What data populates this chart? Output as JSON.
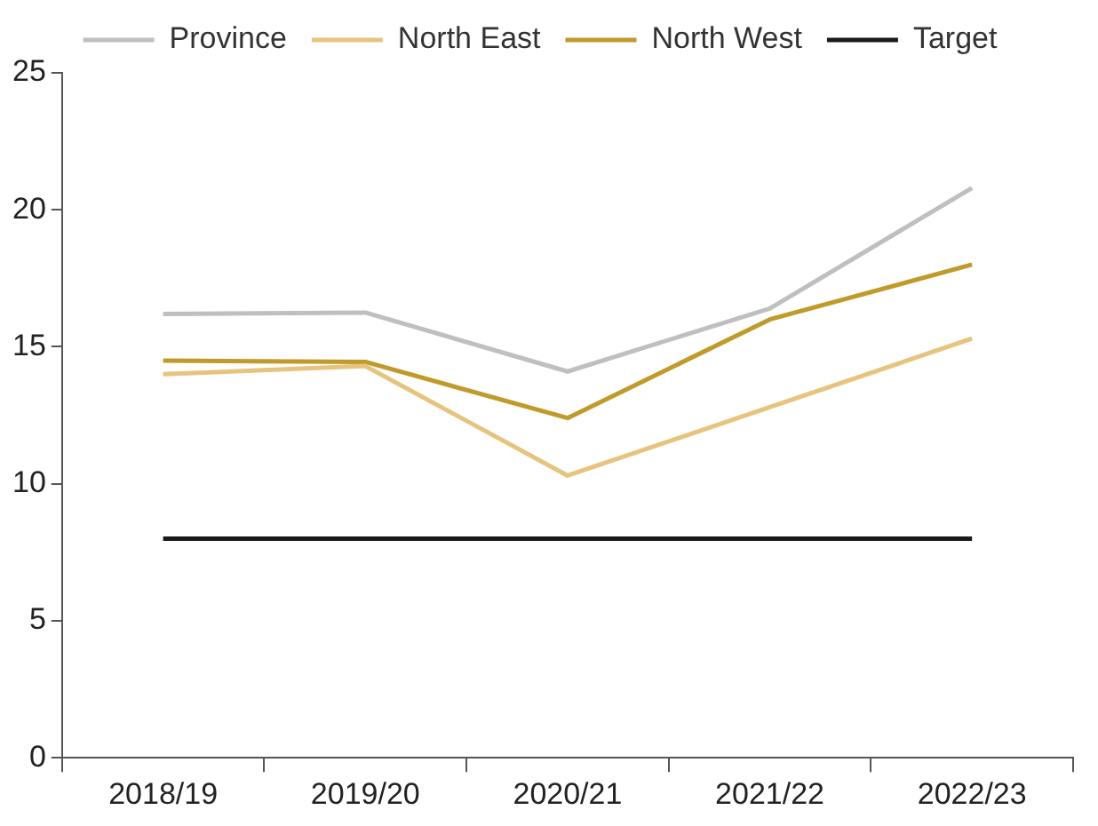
{
  "chart_data": {
    "type": "line",
    "categories": [
      "2018/19",
      "2019/20",
      "2020/21",
      "2021/22",
      "2022/23"
    ],
    "series": [
      {
        "name": "Province",
        "color": "#bfbfbf",
        "values": [
          16.2,
          16.25,
          14.1,
          16.4,
          20.8
        ]
      },
      {
        "name": "North East",
        "color": "#e6c47e",
        "values": [
          14.0,
          14.3,
          10.3,
          12.8,
          15.3
        ]
      },
      {
        "name": "North West",
        "color": "#c09a2a",
        "values": [
          14.5,
          14.45,
          12.4,
          16.0,
          18.0
        ]
      },
      {
        "name": "Target",
        "color": "#1a1a1a",
        "values": [
          8,
          8,
          8,
          8,
          8
        ]
      }
    ],
    "ylim": [
      0,
      25
    ],
    "yticks": [
      0,
      5,
      10,
      15,
      20,
      25
    ],
    "grid": false,
    "legend": "top",
    "marker": "none",
    "line_style": "solid"
  }
}
